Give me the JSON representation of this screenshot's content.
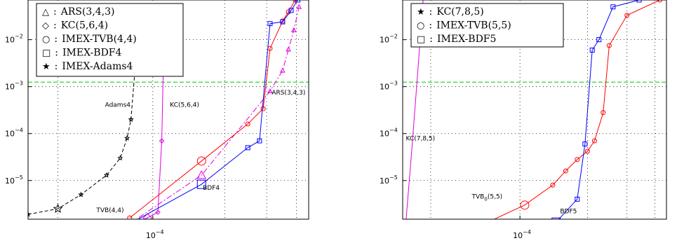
{
  "chart_data": [
    {
      "type": "line",
      "xscale": "log",
      "yscale": "log",
      "xlim": [
        3e-05,
        0.00045
      ],
      "ylim": [
        1.5e-06,
        0.07
      ],
      "xticks": [
        {
          "v": 0.0001,
          "base": "10",
          "exp": "−4"
        }
      ],
      "yticks": [
        {
          "v": 0.01,
          "base": "10",
          "exp": "−2"
        },
        {
          "v": 0.001,
          "base": "10",
          "exp": "−3"
        },
        {
          "v": 0.0001,
          "base": "10",
          "exp": "−4"
        },
        {
          "v": 1e-05,
          "base": "10",
          "exp": "−5"
        }
      ],
      "hline": {
        "y": 0.00125,
        "color": "#00cc00"
      },
      "legend": {
        "placement": "top-left",
        "entries": [
          {
            "marker": "△",
            "label": "ARS(3,4,3)"
          },
          {
            "marker": "◇",
            "label": "KC(5,6,4)"
          },
          {
            "marker": "○",
            "label": "IMEX-TVB(4,4)"
          },
          {
            "marker": "□",
            "label": "IMEX-BDF4"
          },
          {
            "marker": "★",
            "label": "IMEX-Adams4"
          }
        ]
      },
      "annotations": [
        {
          "text": "Adams4",
          "x": 6.3e-05,
          "y": 0.00037
        },
        {
          "text": "KC(5,6,4)",
          "x": 0.000118,
          "y": 0.00037
        },
        {
          "text": "ARS(3,4,3)",
          "x": 0.000315,
          "y": 0.00068
        },
        {
          "text": "BDF4",
          "x": 0.000162,
          "y": 6.4e-06
        },
        {
          "text": "TVB(4,4)",
          "x": 5.8e-05,
          "y": 2.1e-06
        }
      ],
      "series": [
        {
          "name": "IMEX-Adams4",
          "color": "#000000",
          "dash": "5 3",
          "marker": "star",
          "x": [
            3e-05,
            4e-05,
            5e-05,
            6.4e-05,
            7.3e-05,
            7.8e-05,
            8.1e-05,
            8.4e-05
          ],
          "y": [
            1.9e-06,
            2.5e-06,
            5e-06,
            1.3e-05,
            3e-05,
            8e-05,
            0.0002,
            0.002
          ]
        },
        {
          "name": "KC(5,6,4)",
          "color": "#dd00dd",
          "dash": "",
          "marker": "diamond",
          "x": [
            8.5e-05,
            9.5e-05,
            0.000105,
            0.000109,
            0.000112
          ],
          "y": [
            1.3e-06,
            1.6e-06,
            2.1e-06,
            7e-05,
            0.05
          ]
        },
        {
          "name": "ARS(3,4,3)",
          "color": "#dd00dd",
          "dash": "8 3 2 3",
          "marker": "triangle",
          "x": [
            8e-05,
            0.00016,
            0.00031,
            0.00035,
            0.00037,
            0.00039,
            0.00041
          ],
          "y": [
            1.2e-06,
            1.3e-05,
            0.0008,
            0.0022,
            0.0062,
            0.016,
            0.05
          ]
        },
        {
          "name": "IMEX-TVB(4,4)",
          "color": "#ff0000",
          "dash": "",
          "marker": "circle",
          "x": [
            8e-05,
            0.00016,
            0.00025,
            0.00029,
            0.00031,
            0.00035,
            0.00037,
            0.000395
          ],
          "y": [
            1.6e-06,
            2.6e-05,
            0.00016,
            0.00034,
            0.0065,
            0.025,
            0.039,
            0.07
          ]
        },
        {
          "name": "IMEX-BDF4",
          "color": "#0000ff",
          "dash": "",
          "marker": "square",
          "x": [
            8e-05,
            0.00016,
            0.00025,
            0.00028,
            0.00031,
            0.00035,
            0.00038,
            0.000405
          ],
          "y": [
            1.2e-06,
            8.3e-06,
            5e-05,
            7e-05,
            0.022,
            0.024,
            0.042,
            0.07
          ]
        }
      ]
    },
    {
      "type": "line",
      "xscale": "log",
      "yscale": "log",
      "xlim": [
        3e-05,
        0.00045
      ],
      "ylim": [
        1.5e-06,
        0.07
      ],
      "xticks": [
        {
          "v": 0.0001,
          "base": "10",
          "exp": "−4"
        }
      ],
      "yticks": [
        {
          "v": 0.01,
          "base": "10",
          "exp": "−2"
        },
        {
          "v": 0.001,
          "base": "10",
          "exp": "−3"
        },
        {
          "v": 0.0001,
          "base": "10",
          "exp": "−4"
        },
        {
          "v": 1e-05,
          "base": "10",
          "exp": "−5"
        }
      ],
      "hline": {
        "y": 0.00125,
        "color": "#00cc00"
      },
      "legend": {
        "placement": "top-left",
        "entries": [
          {
            "marker": "★",
            "label": "KC(7,8,5)"
          },
          {
            "marker": "○",
            "label": "IMEX-TVB(5,5)"
          },
          {
            "marker": "□",
            "label": "IMEX-BDF5"
          }
        ]
      },
      "annotations": [
        {
          "text": "KC(7,8,5)",
          "x": 3.1e-05,
          "y": 7.2e-05
        },
        {
          "text": "TVB",
          "sub": "0",
          "rest": "(5,5)",
          "x": 6.1e-05,
          "y": 4.1e-06
        },
        {
          "text": "BDF5",
          "x": 0.000151,
          "y": 2e-06
        }
      ],
      "series": [
        {
          "name": "KC(7,8,5)",
          "color": "#dd00dd",
          "dash": "",
          "marker": "none",
          "x": [
            3.1e-05,
            3.3e-05,
            3.5e-05,
            3.7e-05
          ],
          "y": [
            1.3e-06,
            5e-05,
            0.002,
            0.07
          ]
        },
        {
          "name": "IMEX-TVB(5,5)",
          "color": "#ff0000",
          "dash": "",
          "marker": "circle",
          "x": [
            7.2e-05,
            0.000105,
            0.00014,
            0.00016,
            0.00018,
            0.0002,
            0.000215,
            0.000235,
            0.00025,
            0.0003,
            0.00042
          ],
          "y": [
            1.3e-06,
            3e-06,
            8e-06,
            1.6e-05,
            2.8e-05,
            4.2e-05,
            7e-05,
            0.00028,
            0.0075,
            0.033,
            0.07
          ]
        },
        {
          "name": "IMEX-BDF5",
          "color": "#0000ff",
          "dash": "",
          "marker": "square",
          "x": [
            0.0001,
            0.000145,
            0.00018,
            0.000195,
            0.00021,
            0.000225,
            0.00026,
            0.00034
          ],
          "y": [
            1.3e-06,
            1.3e-06,
            4e-06,
            6e-05,
            0.006,
            0.01,
            0.05,
            0.07
          ]
        }
      ]
    }
  ]
}
